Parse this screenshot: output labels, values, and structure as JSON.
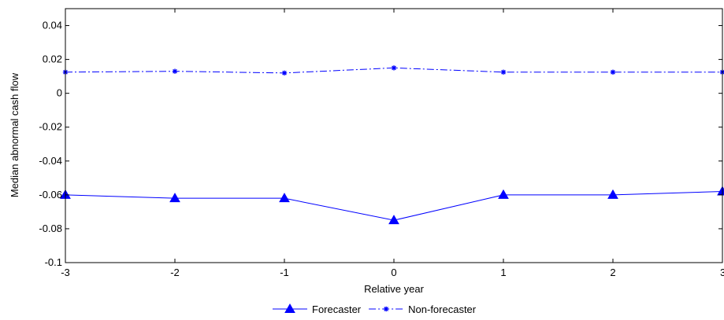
{
  "chart_data": {
    "type": "line",
    "title": "",
    "xlabel": "Relative year",
    "ylabel": "Median abnormal cash flow",
    "xlim": [
      -3,
      3
    ],
    "ylim": [
      -0.1,
      0.05
    ],
    "x_ticks": [
      -3,
      -2,
      -1,
      0,
      1,
      2,
      3
    ],
    "y_ticks": [
      -0.1,
      -0.08,
      -0.06,
      -0.04,
      -0.02,
      0,
      0.02,
      0.04
    ],
    "x_tick_labels": [
      "-3",
      "-2",
      "-1",
      "0",
      "1",
      "2",
      "3"
    ],
    "y_tick_labels": [
      "-0.1",
      "-0.08",
      "-0.06",
      "-0.04",
      "-0.02",
      "0",
      "0.02",
      "0.04"
    ],
    "grid": false,
    "legend_position": "bottom",
    "x": [
      -3,
      -2,
      -1,
      0,
      1,
      2,
      3
    ],
    "series": [
      {
        "name": "Forecaster",
        "values": [
          -0.06,
          -0.062,
          -0.062,
          -0.075,
          -0.06,
          -0.06,
          -0.058
        ],
        "color": "#0000ff",
        "line_style": "solid",
        "marker": "triangle"
      },
      {
        "name": "Non-forecaster",
        "values": [
          0.0125,
          0.013,
          0.012,
          0.015,
          0.0125,
          0.0125,
          0.0125
        ],
        "color": "#0000ff",
        "line_style": "dash-dot",
        "marker": "asterisk"
      }
    ]
  }
}
